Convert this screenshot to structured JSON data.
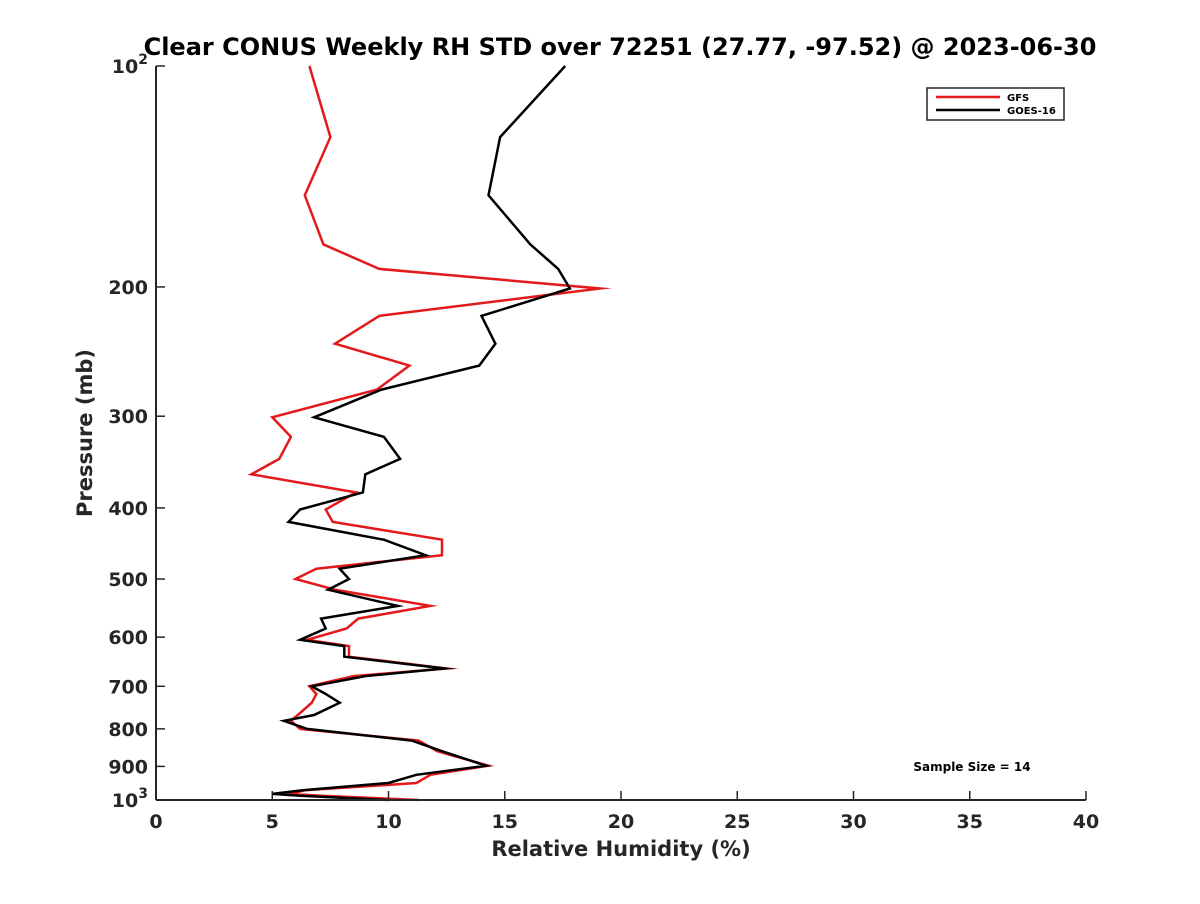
{
  "chart_data": {
    "type": "line",
    "title": "Clear CONUS Weekly RH STD over 72251 (27.77, -97.52) @ 2023-06-30",
    "xlabel": "Relative Humidity (%)",
    "ylabel": "Pressure (mb)",
    "xlim": [
      0,
      40
    ],
    "ylim": [
      100,
      1000
    ],
    "y_scale": "log",
    "y_reversed": true,
    "grid": false,
    "legend_position": "top-right",
    "x_ticks": [
      0,
      5,
      10,
      15,
      20,
      25,
      30,
      35,
      40
    ],
    "x_tick_labels": [
      "0",
      "5",
      "10",
      "15",
      "20",
      "25",
      "30",
      "35",
      "40"
    ],
    "y_ticks": [
      100,
      200,
      300,
      400,
      500,
      600,
      700,
      800,
      900,
      1000
    ],
    "y_tick_labels": [
      {
        "base": "10",
        "exp": "2"
      },
      {
        "base": "200",
        "exp": ""
      },
      {
        "base": "300",
        "exp": ""
      },
      {
        "base": "400",
        "exp": ""
      },
      {
        "base": "500",
        "exp": ""
      },
      {
        "base": "600",
        "exp": ""
      },
      {
        "base": "700",
        "exp": ""
      },
      {
        "base": "800",
        "exp": ""
      },
      {
        "base": "900",
        "exp": ""
      },
      {
        "base": "10",
        "exp": "3"
      }
    ],
    "annotation": "Sample Size = 14",
    "series": [
      {
        "name": "GFS",
        "color": "#e31a1c",
        "points": [
          [
            6.6,
            100
          ],
          [
            7.5,
            125
          ],
          [
            6.4,
            150
          ],
          [
            7.2,
            175
          ],
          [
            9.6,
            189
          ],
          [
            19.1,
            201
          ],
          [
            9.6,
            219
          ],
          [
            7.7,
            239
          ],
          [
            10.9,
            256
          ],
          [
            9.5,
            276
          ],
          [
            5.0,
            301
          ],
          [
            5.8,
            320
          ],
          [
            5.3,
            343
          ],
          [
            4.1,
            360
          ],
          [
            8.6,
            381
          ],
          [
            7.3,
            402
          ],
          [
            7.6,
            418
          ],
          [
            12.3,
            442
          ],
          [
            12.3,
            464
          ],
          [
            6.9,
            484
          ],
          [
            6.0,
            500
          ],
          [
            7.7,
            517
          ],
          [
            11.8,
            544
          ],
          [
            8.7,
            566
          ],
          [
            8.2,
            584
          ],
          [
            6.5,
            605
          ],
          [
            8.3,
            617
          ],
          [
            8.3,
            638
          ],
          [
            12.5,
            662
          ],
          [
            8.5,
            678
          ],
          [
            6.6,
            700
          ],
          [
            6.9,
            717
          ],
          [
            6.7,
            737
          ],
          [
            6.1,
            766
          ],
          [
            5.8,
            780
          ],
          [
            6.2,
            800
          ],
          [
            11.3,
            830
          ],
          [
            12.1,
            858
          ],
          [
            14.3,
            898
          ],
          [
            11.8,
            924
          ],
          [
            11.2,
            948
          ],
          [
            6.4,
            970
          ],
          [
            5.8,
            981
          ],
          [
            7.1,
            987
          ],
          [
            11.3,
            1000
          ]
        ]
      },
      {
        "name": "GOES-16",
        "color": "#000000",
        "points": [
          [
            17.6,
            100
          ],
          [
            14.8,
            125
          ],
          [
            14.3,
            150
          ],
          [
            16.1,
            175
          ],
          [
            17.3,
            189
          ],
          [
            17.8,
            201
          ],
          [
            14.0,
            219
          ],
          [
            14.6,
            239
          ],
          [
            13.9,
            256
          ],
          [
            9.7,
            276
          ],
          [
            6.8,
            301
          ],
          [
            9.8,
            320
          ],
          [
            10.5,
            343
          ],
          [
            9.0,
            360
          ],
          [
            8.9,
            381
          ],
          [
            6.2,
            402
          ],
          [
            5.7,
            418
          ],
          [
            9.8,
            442
          ],
          [
            11.6,
            464
          ],
          [
            7.9,
            484
          ],
          [
            8.3,
            500
          ],
          [
            7.4,
            517
          ],
          [
            10.4,
            544
          ],
          [
            7.1,
            566
          ],
          [
            7.3,
            584
          ],
          [
            6.2,
            605
          ],
          [
            8.1,
            617
          ],
          [
            8.1,
            638
          ],
          [
            12.4,
            662
          ],
          [
            9.0,
            678
          ],
          [
            6.7,
            700
          ],
          [
            7.3,
            717
          ],
          [
            7.9,
            737
          ],
          [
            6.8,
            766
          ],
          [
            5.5,
            780
          ],
          [
            6.5,
            800
          ],
          [
            11.0,
            830
          ],
          [
            12.3,
            858
          ],
          [
            14.2,
            898
          ],
          [
            11.2,
            924
          ],
          [
            10.0,
            948
          ],
          [
            6.3,
            970
          ],
          [
            5.0,
            981
          ],
          [
            6.2,
            987
          ],
          [
            10.0,
            1000
          ]
        ]
      }
    ]
  }
}
